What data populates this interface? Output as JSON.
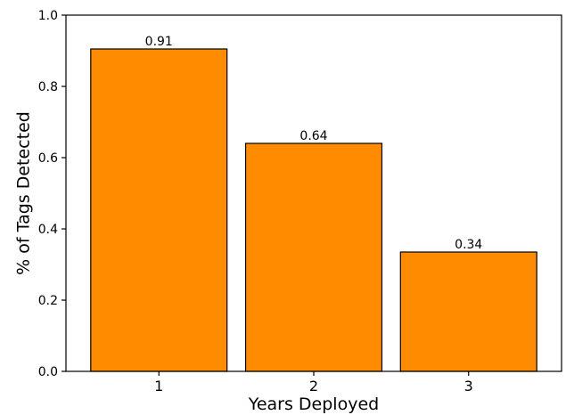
{
  "chart_data": {
    "type": "bar",
    "categories": [
      "1",
      "2",
      "3"
    ],
    "values": [
      0.905,
      0.64,
      0.335
    ],
    "data_labels": [
      "0.91",
      "0.64",
      "0.34"
    ],
    "xlabel": "Years Deployed",
    "ylabel": "% of Tags Detected",
    "ylim": [
      0,
      1.0
    ],
    "yticks": [
      "0.0",
      "0.2",
      "0.4",
      "0.6",
      "0.8",
      "1.0"
    ],
    "grid": false,
    "bar_color": "#ff8c00",
    "edge_color": "#000000"
  }
}
